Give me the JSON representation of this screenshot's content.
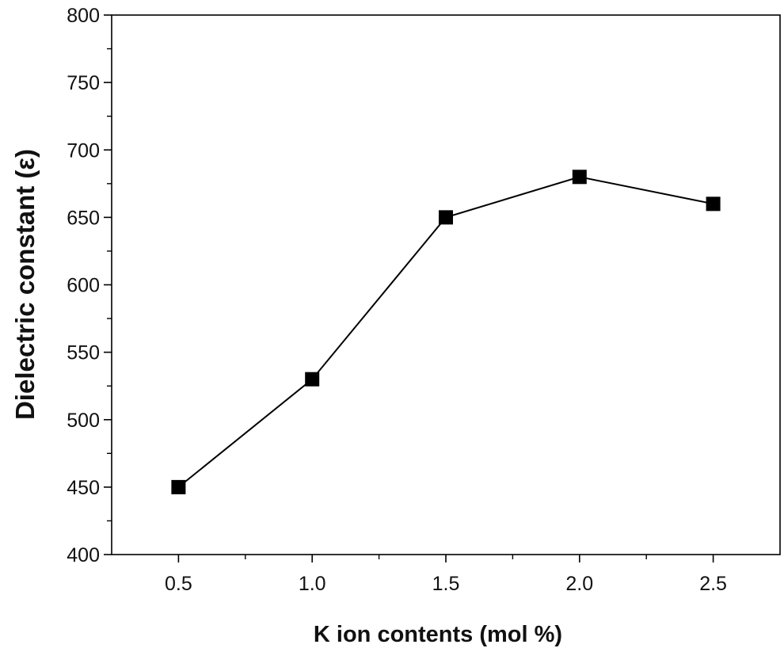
{
  "chart_data": {
    "type": "line",
    "title": "",
    "xlabel": "K ion contents (mol %)",
    "ylabel": "Dielectric constant (ε)",
    "xlim": [
      0.25,
      2.75
    ],
    "ylim": [
      400,
      800
    ],
    "x_ticks": [
      "0.5",
      "1.0",
      "1.5",
      "2.0",
      "2.5"
    ],
    "y_ticks": [
      "400",
      "450",
      "500",
      "550",
      "600",
      "650",
      "700",
      "750",
      "800"
    ],
    "grid": false,
    "legend": "none",
    "marker": "square",
    "color": "#000000",
    "series": [
      {
        "x": [
          0.5,
          1.0,
          1.5,
          2.0,
          2.5
        ],
        "values": [
          450,
          530,
          650,
          680,
          660
        ]
      }
    ]
  }
}
